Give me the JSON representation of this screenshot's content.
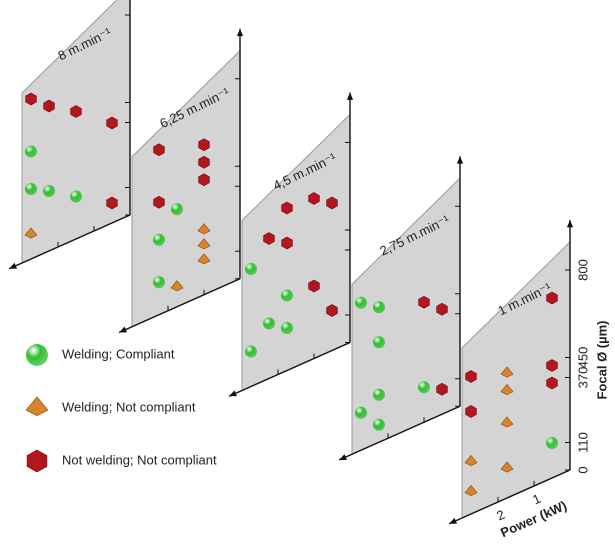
{
  "chart_data": {
    "type": "scatter",
    "xlabel": "Power (kW)",
    "ylabel": "Focal Ø (µm)",
    "xlim": [
      0,
      3
    ],
    "xticks": [
      1,
      2
    ],
    "ylim": [
      0,
      800
    ],
    "yticks": [
      0,
      110,
      370,
      450,
      800
    ],
    "series": [
      {
        "name": "Welding; Compliant",
        "color": "#2fc02f",
        "marker": "sphere"
      },
      {
        "name": "Welding; Not compliant",
        "color": "#d8842c",
        "marker": "pyramid"
      },
      {
        "name": "Not welding; Not compliant",
        "color": "#b3161c",
        "marker": "cube"
      }
    ],
    "panels": [
      {
        "title": "8 m.min⁻¹",
        "series": [
          {
            "x": [
              2.75,
              2.75,
              2.25,
              1.5
            ],
            "y": [
              430,
              280,
              240,
              170
            ]
          },
          {
            "x": [
              2.75
            ],
            "y": [
              100
            ]
          },
          {
            "x": [
              2.75,
              2.25,
              1.5,
              0.5,
              0.5
            ],
            "y": [
              640,
              580,
              510,
              400,
              80
            ]
          }
        ]
      },
      {
        "title": "6,25 m.min⁻¹",
        "series": [
          {
            "x": [
              1.75,
              2.25,
              2.25
            ],
            "y": [
              390,
              300,
              130
            ]
          },
          {
            "x": [
              1,
              1,
              1,
              1.75
            ],
            "y": [
              260,
              200,
              140,
              80
            ]
          },
          {
            "x": [
              2.25,
              1,
              1,
              1,
              2.25
            ],
            "y": [
              660,
              600,
              530,
              460,
              450
            ]
          }
        ]
      },
      {
        "title": "4,5 m.min⁻¹",
        "series": [
          {
            "x": [
              2.75,
              1.75,
              2.25,
              1.75,
              2.75
            ],
            "y": [
              470,
              300,
              220,
              170,
              140
            ]
          },
          {
            "x": [],
            "y": []
          },
          {
            "x": [
              1.75,
              1,
              0.5,
              2.25,
              1.75,
              1,
              0.5
            ],
            "y": [
              650,
              640,
              590,
              560,
              510,
              290,
              160
            ]
          }
        ]
      },
      {
        "title": "2,75 m.min⁻¹",
        "series": [
          {
            "x": [
              2.75,
              2.25,
              2.25,
              1,
              2.25,
              2.75,
              2.25
            ],
            "y": [
              590,
              540,
              400,
              140,
              190,
              150,
              70
            ]
          },
          {
            "x": [],
            "y": []
          },
          {
            "x": [
              1,
              0.5,
              0.5
            ],
            "y": [
              480,
              420,
              100
            ]
          }
        ]
      },
      {
        "title": "1 m.min⁻¹",
        "series": [
          {
            "x": [
              0.5
            ],
            "y": [
              140
            ]
          },
          {
            "x": [
              1.75,
              1.75,
              1.75,
              1.75,
              2.75,
              2.75
            ],
            "y": [
              500,
              430,
              300,
              120,
              210,
              90
            ]
          },
          {
            "x": [
              0.5,
              0.5,
              0.5,
              2.75,
              2.75
            ],
            "y": [
              720,
              450,
              380,
              550,
              410
            ]
          }
        ]
      }
    ]
  }
}
